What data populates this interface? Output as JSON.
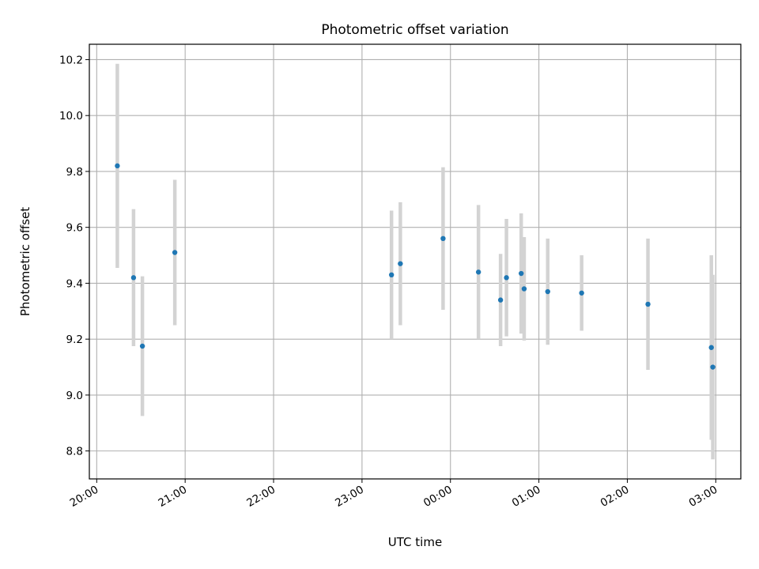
{
  "chart_data": {
    "type": "scatter",
    "title": "Photometric offset variation",
    "xlabel": "UTC time",
    "ylabel": "Photometric offset",
    "x_ticks": [
      "20:00",
      "21:00",
      "22:00",
      "23:00",
      "00:00",
      "01:00",
      "02:00",
      "03:00"
    ],
    "y_ticks": [
      "8.8",
      "9.0",
      "9.2",
      "9.4",
      "9.6",
      "9.8",
      "10.0",
      "10.2"
    ],
    "xlim": [
      "19:55",
      "03:17"
    ],
    "ylim": [
      8.7,
      10.255
    ],
    "grid": true,
    "point_color": "#1f77b4",
    "errorbar_color": "#d3d3d3",
    "points": [
      {
        "time": "20:14",
        "y": 9.82,
        "err": 0.365
      },
      {
        "time": "20:25",
        "y": 9.42,
        "err": 0.245
      },
      {
        "time": "20:31",
        "y": 9.175,
        "err": 0.25
      },
      {
        "time": "20:53",
        "y": 9.51,
        "err": 0.26
      },
      {
        "time": "23:20",
        "y": 9.43,
        "err": 0.23
      },
      {
        "time": "23:26",
        "y": 9.47,
        "err": 0.22
      },
      {
        "time": "23:55",
        "y": 9.56,
        "err": 0.255
      },
      {
        "time": "00:19",
        "y": 9.44,
        "err": 0.24
      },
      {
        "time": "00:34",
        "y": 9.34,
        "err": 0.165
      },
      {
        "time": "00:38",
        "y": 9.42,
        "err": 0.21
      },
      {
        "time": "00:48",
        "y": 9.435,
        "err": 0.215
      },
      {
        "time": "00:50",
        "y": 9.38,
        "err": 0.185
      },
      {
        "time": "01:06",
        "y": 9.37,
        "err": 0.19
      },
      {
        "time": "01:29",
        "y": 9.365,
        "err": 0.135
      },
      {
        "time": "02:14",
        "y": 9.325,
        "err": 0.235
      },
      {
        "time": "02:57",
        "y": 9.17,
        "err": 0.33
      },
      {
        "time": "02:58",
        "y": 9.1,
        "err": 0.33
      }
    ]
  }
}
